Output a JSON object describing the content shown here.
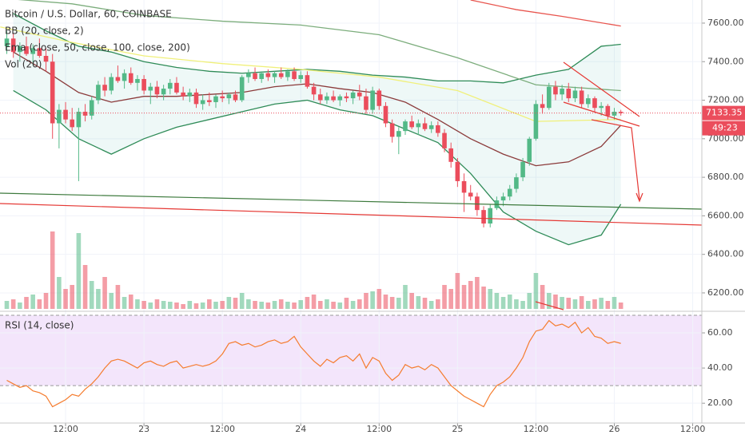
{
  "chart_data": {
    "type": "candlestick",
    "title": "Bitcoin / U.S. Dollar, 60, COINBASE",
    "indicator_labels": [
      "BB (20, close, 2)",
      "Ema (close, 50, close, 100, close, 200)",
      "Vol (20)"
    ],
    "rsi_label": "RSI (14, close)",
    "colors": {
      "up": "#53b987",
      "down": "#eb4d5c"
    },
    "xlim": [
      -1.04,
      106.4
    ],
    "xticks": [
      {
        "value": 9,
        "label": "12:00"
      },
      {
        "value": 21,
        "label": "23"
      },
      {
        "value": 33,
        "label": "12:00"
      },
      {
        "value": 45,
        "label": "24"
      },
      {
        "value": 57,
        "label": "12:00"
      },
      {
        "value": 69,
        "label": "25"
      },
      {
        "value": 81,
        "label": "12:00"
      },
      {
        "value": 93,
        "label": "26"
      },
      {
        "value": 105,
        "label": "12:00"
      }
    ],
    "ylim": [
      6117,
      7720
    ],
    "yticks": [
      {
        "value": 6200,
        "label": "6200.00"
      },
      {
        "value": 6400,
        "label": "6400.00"
      },
      {
        "value": 6600,
        "label": "6600.00"
      },
      {
        "value": 6800,
        "label": "6800.00"
      },
      {
        "value": 7000,
        "label": "7000.00"
      },
      {
        "value": 7200,
        "label": "7200.00"
      },
      {
        "value": 7400,
        "label": "7400.00"
      },
      {
        "value": 7600,
        "label": "7600.00"
      }
    ],
    "last_price": 7133.35,
    "countdown": "49:23",
    "candles": [
      [
        7480,
        7560,
        7440,
        7520
      ],
      [
        7520,
        7550,
        7420,
        7450
      ],
      [
        7450,
        7500,
        7400,
        7480
      ],
      [
        7480,
        7530,
        7430,
        7440
      ],
      [
        7440,
        7490,
        7380,
        7470
      ],
      [
        7470,
        7520,
        7420,
        7430
      ],
      [
        7430,
        7470,
        7350,
        7400
      ],
      [
        7400,
        7440,
        7000,
        7080
      ],
      [
        7080,
        7180,
        6950,
        7150
      ],
      [
        7150,
        7190,
        7080,
        7100
      ],
      [
        7100,
        7160,
        7040,
        7060
      ],
      [
        7060,
        7160,
        6780,
        7140
      ],
      [
        7140,
        7180,
        7090,
        7120
      ],
      [
        7120,
        7220,
        7100,
        7200
      ],
      [
        7200,
        7300,
        7180,
        7280
      ],
      [
        7280,
        7320,
        7220,
        7250
      ],
      [
        7250,
        7340,
        7230,
        7320
      ],
      [
        7320,
        7380,
        7290,
        7300
      ],
      [
        7300,
        7360,
        7260,
        7340
      ],
      [
        7340,
        7370,
        7280,
        7290
      ],
      [
        7290,
        7330,
        7250,
        7310
      ],
      [
        7310,
        7330,
        7230,
        7250
      ],
      [
        7250,
        7290,
        7180,
        7270
      ],
      [
        7270,
        7300,
        7210,
        7230
      ],
      [
        7230,
        7280,
        7200,
        7260
      ],
      [
        7260,
        7310,
        7230,
        7290
      ],
      [
        7290,
        7320,
        7230,
        7240
      ],
      [
        7240,
        7270,
        7200,
        7220
      ],
      [
        7220,
        7260,
        7190,
        7240
      ],
      [
        7240,
        7260,
        7160,
        7180
      ],
      [
        7180,
        7230,
        7150,
        7200
      ],
      [
        7200,
        7240,
        7170,
        7190
      ],
      [
        7190,
        7230,
        7160,
        7220
      ],
      [
        7220,
        7250,
        7190,
        7210
      ],
      [
        7210,
        7240,
        7180,
        7230
      ],
      [
        7230,
        7250,
        7190,
        7200
      ],
      [
        7200,
        7330,
        7190,
        7320
      ],
      [
        7320,
        7360,
        7290,
        7340
      ],
      [
        7340,
        7370,
        7300,
        7310
      ],
      [
        7310,
        7350,
        7290,
        7340
      ],
      [
        7340,
        7360,
        7300,
        7320
      ],
      [
        7320,
        7350,
        7290,
        7340
      ],
      [
        7340,
        7370,
        7310,
        7320
      ],
      [
        7320,
        7360,
        7300,
        7350
      ],
      [
        7350,
        7370,
        7300,
        7310
      ],
      [
        7310,
        7350,
        7290,
        7330
      ],
      [
        7330,
        7350,
        7260,
        7270
      ],
      [
        7270,
        7290,
        7200,
        7230
      ],
      [
        7230,
        7260,
        7180,
        7200
      ],
      [
        7200,
        7240,
        7180,
        7220
      ],
      [
        7220,
        7250,
        7190,
        7200
      ],
      [
        7200,
        7230,
        7170,
        7220
      ],
      [
        7220,
        7240,
        7190,
        7210
      ],
      [
        7210,
        7250,
        7180,
        7240
      ],
      [
        7240,
        7280,
        7200,
        7220
      ],
      [
        7220,
        7260,
        7130,
        7150
      ],
      [
        7150,
        7270,
        7130,
        7250
      ],
      [
        7250,
        7260,
        7150,
        7170
      ],
      [
        7170,
        7190,
        7060,
        7080
      ],
      [
        7080,
        7100,
        6980,
        7010
      ],
      [
        7010,
        7060,
        6920,
        7040
      ],
      [
        7040,
        7100,
        7020,
        7090
      ],
      [
        7090,
        7120,
        7050,
        7060
      ],
      [
        7060,
        7100,
        7020,
        7080
      ],
      [
        7080,
        7110,
        7040,
        7050
      ],
      [
        7050,
        7090,
        7030,
        7070
      ],
      [
        7070,
        7090,
        7010,
        7030
      ],
      [
        7030,
        7050,
        6930,
        6950
      ],
      [
        6950,
        6980,
        6850,
        6880
      ],
      [
        6880,
        6900,
        6750,
        6780
      ],
      [
        6780,
        6820,
        6620,
        6720
      ],
      [
        6720,
        6760,
        6680,
        6700
      ],
      [
        6700,
        6720,
        6600,
        6630
      ],
      [
        6630,
        6650,
        6540,
        6560
      ],
      [
        6560,
        6660,
        6540,
        6640
      ],
      [
        6640,
        6700,
        6630,
        6680
      ],
      [
        6680,
        6720,
        6650,
        6700
      ],
      [
        6700,
        6760,
        6680,
        6740
      ],
      [
        6740,
        6820,
        6720,
        6800
      ],
      [
        6800,
        6900,
        6780,
        6880
      ],
      [
        6880,
        7010,
        6860,
        7000
      ],
      [
        7000,
        7200,
        6990,
        7180
      ],
      [
        7180,
        7230,
        7130,
        7160
      ],
      [
        7160,
        7290,
        7150,
        7270
      ],
      [
        7270,
        7300,
        7200,
        7230
      ],
      [
        7230,
        7280,
        7200,
        7260
      ],
      [
        7260,
        7290,
        7190,
        7210
      ],
      [
        7210,
        7270,
        7190,
        7250
      ],
      [
        7250,
        7270,
        7160,
        7180
      ],
      [
        7180,
        7230,
        7160,
        7210
      ],
      [
        7210,
        7220,
        7140,
        7160
      ],
      [
        7160,
        7190,
        7120,
        7170
      ],
      [
        7170,
        7180,
        7100,
        7120
      ],
      [
        7120,
        7160,
        7100,
        7140
      ],
      [
        7140,
        7150,
        7120,
        7133.35
      ]
    ],
    "volume": [
      10,
      12,
      8,
      15,
      18,
      12,
      20,
      97,
      40,
      25,
      30,
      95,
      55,
      35,
      25,
      40,
      20,
      30,
      15,
      18,
      12,
      10,
      8,
      12,
      10,
      9,
      8,
      6,
      10,
      7,
      8,
      12,
      9,
      10,
      15,
      14,
      20,
      12,
      10,
      9,
      8,
      10,
      12,
      9,
      8,
      11,
      15,
      18,
      10,
      12,
      9,
      8,
      14,
      10,
      12,
      20,
      22,
      25,
      18,
      15,
      14,
      30,
      20,
      16,
      14,
      10,
      12,
      30,
      25,
      45,
      30,
      35,
      40,
      28,
      25,
      20,
      15,
      18,
      12,
      10,
      20,
      45,
      30,
      20,
      18,
      15,
      14,
      12,
      16,
      10,
      12,
      14,
      10,
      15,
      8
    ],
    "volume_ylim": [
      0,
      100
    ],
    "bollinger": {
      "x": [
        1,
        6,
        11,
        16,
        21,
        26,
        31,
        36,
        41,
        46,
        51,
        56,
        61,
        66,
        71,
        76,
        81,
        86,
        91,
        94
      ],
      "upper": [
        7650,
        7560,
        7480,
        7450,
        7400,
        7370,
        7350,
        7340,
        7350,
        7360,
        7350,
        7330,
        7320,
        7300,
        7300,
        7290,
        7330,
        7360,
        7480,
        7490
      ],
      "basis": [
        7450,
        7350,
        7240,
        7190,
        7220,
        7220,
        7230,
        7240,
        7270,
        7285,
        7260,
        7240,
        7190,
        7100,
        7000,
        6920,
        6860,
        6880,
        6960,
        7070
      ],
      "lower": [
        7250,
        7150,
        7000,
        6920,
        7000,
        7060,
        7100,
        7140,
        7180,
        7200,
        7150,
        7120,
        7050,
        6980,
        6820,
        6620,
        6520,
        6450,
        6500,
        6660
      ],
      "colors": {
        "upper": "#2e8b57",
        "basis": "#8b3a3a",
        "lower": "#2e8b57",
        "fill": "#26a69a"
      }
    },
    "ema": [
      {
        "color": "#f0f07a",
        "x": [
          -1,
          10,
          21,
          33,
          45,
          57,
          69,
          81,
          94
        ],
        "values": [
          7580,
          7500,
          7430,
          7390,
          7360,
          7320,
          7250,
          7090,
          7100
        ]
      },
      {
        "color": "#7cad7c",
        "x": [
          -1,
          10,
          21,
          33,
          45,
          57,
          69,
          81,
          94
        ],
        "values": [
          7730,
          7700,
          7640,
          7610,
          7590,
          7540,
          7420,
          7280,
          7250
        ]
      },
      {
        "color": "#e8554e",
        "x": [
          71,
          78,
          85,
          94
        ],
        "values": [
          7720,
          7670,
          7635,
          7585
        ]
      }
    ],
    "rsi": [
      33,
      31,
      29,
      30,
      27,
      26,
      24,
      18,
      20,
      22,
      25,
      24,
      28,
      31,
      35,
      40,
      44,
      45,
      44,
      42,
      40,
      43,
      44,
      42,
      41,
      43,
      44,
      40,
      41,
      42,
      41,
      42,
      44,
      48,
      54,
      55,
      53,
      54,
      52,
      53,
      55,
      56,
      54,
      55,
      58,
      52,
      48,
      44,
      41,
      45,
      43,
      46,
      47,
      44,
      48,
      40,
      46,
      44,
      37,
      33,
      36,
      42,
      40,
      41,
      39,
      42,
      40,
      35,
      30,
      27,
      24,
      22,
      20,
      18,
      25,
      30,
      32,
      35,
      40,
      46,
      55,
      61,
      62,
      67,
      64,
      65,
      63,
      66,
      60,
      63,
      58,
      57,
      54,
      55,
      54
    ],
    "rsi_color": "#f57c2e",
    "rsi_ylim": [
      11,
      70
    ],
    "rsi_yticks": [
      {
        "value": 20,
        "label": "20.00"
      },
      {
        "value": 40,
        "label": "40.00"
      },
      {
        "value": 60,
        "label": "60.00"
      }
    ],
    "rsi_bands": [
      30,
      70
    ]
  }
}
